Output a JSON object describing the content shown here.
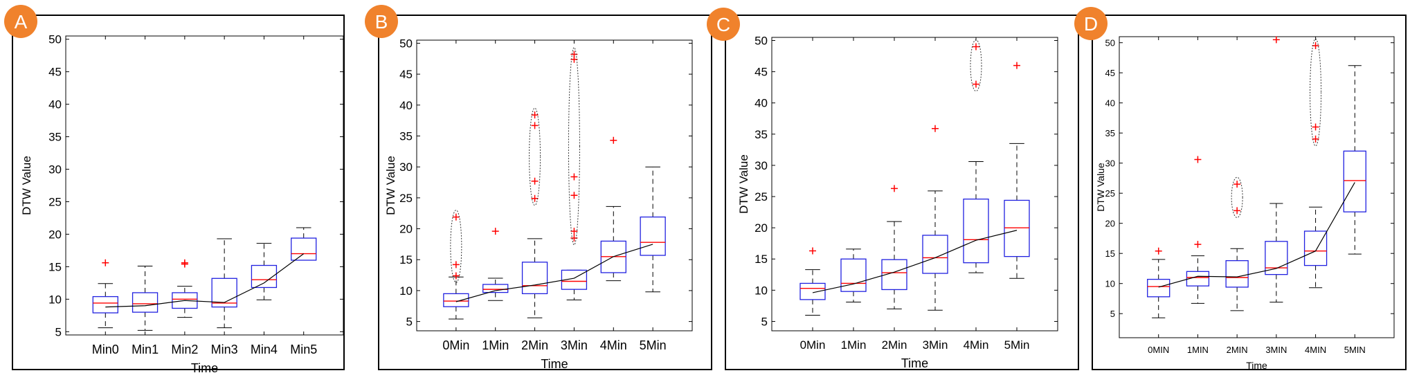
{
  "chart_data": [
    {
      "panel_label": "A",
      "type": "box",
      "xlabel": "Time",
      "ylabel": "DTW Value",
      "ylim": [
        4.5,
        50.5
      ],
      "yticks": [
        5,
        10,
        15,
        20,
        25,
        30,
        35,
        40,
        45,
        50
      ],
      "categories": [
        "Min0",
        "Min1",
        "Min2",
        "Min3",
        "Min4",
        "Min5"
      ],
      "boxes": [
        {
          "whisker_low": 5.6,
          "q1": 7.9,
          "median": 9.4,
          "q3": 10.4,
          "whisker_high": 12.4,
          "outliers": [
            15.6
          ],
          "ellipse": false
        },
        {
          "whisker_low": 5.2,
          "q1": 8.0,
          "median": 9.3,
          "q3": 11.0,
          "whisker_high": 15.1,
          "outliers": [],
          "ellipse": false
        },
        {
          "whisker_low": 7.2,
          "q1": 8.6,
          "median": 10.0,
          "q3": 11.0,
          "whisker_high": 12.0,
          "outliers": [
            15.4,
            15.6
          ],
          "ellipse": false
        },
        {
          "whisker_low": 5.6,
          "q1": 8.8,
          "median": 9.4,
          "q3": 13.2,
          "whisker_high": 19.3,
          "outliers": [],
          "ellipse": false
        },
        {
          "whisker_low": 9.9,
          "q1": 11.8,
          "median": 13.0,
          "q3": 15.2,
          "whisker_high": 18.6,
          "outliers": [],
          "ellipse": false
        },
        {
          "whisker_low": 16.0,
          "q1": 16.0,
          "median": 17.0,
          "q3": 19.4,
          "whisker_high": 21.0,
          "outliers": [],
          "ellipse": false
        }
      ],
      "mean_line": [
        8.8,
        9.0,
        9.8,
        9.5,
        12.5,
        17.0
      ],
      "colors": {
        "box": "#2020e0",
        "median": "#ff0000",
        "outlier": "#ff0000",
        "mean_line": "#000000",
        "badge": "#f0822c"
      }
    },
    {
      "panel_label": "B",
      "type": "box",
      "xlabel": "Time",
      "ylabel": "DTW Value",
      "ylim": [
        3.5,
        50.5
      ],
      "yticks": [
        5,
        10,
        15,
        20,
        25,
        30,
        35,
        40,
        45,
        50
      ],
      "categories": [
        "0Min",
        "1Min",
        "2Min",
        "3Min",
        "4Min",
        "5Min"
      ],
      "boxes": [
        {
          "whisker_low": 5.4,
          "q1": 7.4,
          "median": 8.3,
          "q3": 9.5,
          "whisker_high": 12.2,
          "outliers": [
            12.4,
            14.2,
            21.9
          ],
          "ellipse": true
        },
        {
          "whisker_low": 8.4,
          "q1": 9.7,
          "median": 10.2,
          "q3": 11.0,
          "whisker_high": 12.0,
          "outliers": [
            19.6
          ],
          "ellipse": false
        },
        {
          "whisker_low": 5.6,
          "q1": 9.5,
          "median": 10.8,
          "q3": 14.6,
          "whisker_high": 18.4,
          "outliers": [
            24.9,
            27.7,
            36.7,
            38.4
          ],
          "ellipse": true
        },
        {
          "whisker_low": 8.5,
          "q1": 10.2,
          "median": 11.5,
          "q3": 13.3,
          "whisker_high": 13.3,
          "outliers": [
            18.5,
            19.6,
            25.4,
            28.4,
            47.4,
            48.2
          ],
          "ellipse": true
        },
        {
          "whisker_low": 11.6,
          "q1": 12.9,
          "median": 15.5,
          "q3": 18.0,
          "whisker_high": 23.6,
          "outliers": [
            34.3
          ],
          "ellipse": false
        },
        {
          "whisker_low": 9.8,
          "q1": 15.7,
          "median": 17.8,
          "q3": 21.9,
          "whisker_high": 30.0,
          "outliers": [],
          "ellipse": false
        }
      ],
      "mean_line": [
        8.2,
        10.0,
        10.9,
        12.0,
        15.5,
        17.5
      ],
      "colors": {
        "box": "#2020e0",
        "median": "#ff0000",
        "outlier": "#ff0000",
        "mean_line": "#000000",
        "badge": "#f0822c"
      }
    },
    {
      "panel_label": "C",
      "type": "box",
      "xlabel": "Time",
      "ylabel": "DTW Value",
      "ylim": [
        3.5,
        50.5
      ],
      "yticks": [
        5,
        10,
        15,
        20,
        25,
        30,
        35,
        40,
        45,
        50
      ],
      "categories": [
        "0Min",
        "1Min",
        "2Min",
        "3Min",
        "4Min",
        "5Min"
      ],
      "boxes": [
        {
          "whisker_low": 6.0,
          "q1": 8.5,
          "median": 10.3,
          "q3": 11.1,
          "whisker_high": 13.3,
          "outliers": [
            16.3
          ],
          "ellipse": false
        },
        {
          "whisker_low": 8.1,
          "q1": 9.8,
          "median": 11.1,
          "q3": 15.0,
          "whisker_high": 16.6,
          "outliers": [],
          "ellipse": false
        },
        {
          "whisker_low": 7.0,
          "q1": 10.1,
          "median": 12.8,
          "q3": 14.9,
          "whisker_high": 21.0,
          "outliers": [
            26.3
          ],
          "ellipse": false
        },
        {
          "whisker_low": 6.8,
          "q1": 12.7,
          "median": 15.2,
          "q3": 18.8,
          "whisker_high": 25.9,
          "outliers": [
            35.9
          ],
          "ellipse": true
        },
        {
          "whisker_low": 12.8,
          "q1": 14.4,
          "median": 18.1,
          "q3": 24.6,
          "whisker_high": 30.6,
          "outliers": [
            43.0,
            49.0
          ],
          "ellipse": true
        },
        {
          "whisker_low": 11.9,
          "q1": 15.4,
          "median": 20.0,
          "q3": 24.4,
          "whisker_high": 33.5,
          "outliers": [
            46.0
          ],
          "ellipse": false
        }
      ],
      "mean_line": [
        9.6,
        11.0,
        12.9,
        15.2,
        18.0,
        19.6
      ],
      "colors": {
        "box": "#2020e0",
        "median": "#ff0000",
        "outlier": "#ff0000",
        "mean_line": "#000000",
        "badge": "#f0822c"
      }
    },
    {
      "panel_label": "D",
      "type": "box",
      "xlabel": "Time",
      "ylabel": "DTW Value",
      "ylim": [
        1.0,
        51.0
      ],
      "yticks": [
        5,
        10,
        15,
        20,
        25,
        30,
        35,
        40,
        45,
        50
      ],
      "categories": [
        "0MIN",
        "1MIN",
        "2MIN",
        "3MIN",
        "4MIN",
        "5MIN"
      ],
      "boxes": [
        {
          "whisker_low": 4.3,
          "q1": 7.8,
          "median": 9.5,
          "q3": 10.7,
          "whisker_high": 14.0,
          "outliers": [
            15.4
          ],
          "ellipse": false
        },
        {
          "whisker_low": 6.7,
          "q1": 9.6,
          "median": 11.0,
          "q3": 12.0,
          "whisker_high": 14.6,
          "outliers": [
            16.5,
            30.6
          ],
          "ellipse": false
        },
        {
          "whisker_low": 5.5,
          "q1": 9.4,
          "median": 11.0,
          "q3": 13.8,
          "whisker_high": 15.8,
          "outliers": [
            22.1,
            26.5
          ],
          "ellipse": true
        },
        {
          "whisker_low": 6.9,
          "q1": 11.5,
          "median": 12.6,
          "q3": 17.0,
          "whisker_high": 23.3,
          "outliers": [
            50.5
          ],
          "ellipse": false
        },
        {
          "whisker_low": 9.3,
          "q1": 13.0,
          "median": 15.4,
          "q3": 18.7,
          "whisker_high": 22.7,
          "outliers": [
            34.0,
            36.0,
            49.5
          ],
          "ellipse": true
        },
        {
          "whisker_low": 14.9,
          "q1": 21.9,
          "median": 27.1,
          "q3": 32.0,
          "whisker_high": 46.2,
          "outliers": [],
          "ellipse": false
        }
      ],
      "mean_line": [
        9.4,
        11.2,
        11.1,
        12.5,
        15.4,
        26.8
      ],
      "colors": {
        "box": "#2020e0",
        "median": "#ff0000",
        "outlier": "#ff0000",
        "mean_line": "#000000",
        "badge": "#f0822c"
      }
    }
  ]
}
